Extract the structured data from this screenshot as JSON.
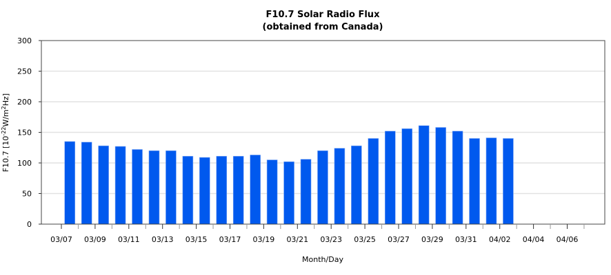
{
  "chart_data": {
    "type": "bar",
    "title": "F10.7 Solar Radio Flux",
    "subtitle": "(obtained from Canada)",
    "xlabel": "Month/Day",
    "ylabel_parts": [
      "F10.7 [10",
      "-22",
      "W/m",
      "2",
      "Hz]"
    ],
    "ylim": [
      0,
      300
    ],
    "yticks": [
      0,
      50,
      100,
      150,
      200,
      250,
      300
    ],
    "grid": true,
    "bar_color": "#0059ee",
    "x_range_days": 31,
    "xtick_labels": [
      "03/07",
      "03/09",
      "03/11",
      "03/13",
      "03/15",
      "03/17",
      "03/19",
      "03/21",
      "03/23",
      "03/25",
      "03/27",
      "03/29",
      "03/31",
      "04/02",
      "04/04",
      "04/06"
    ],
    "categories": [
      "03/07",
      "03/08",
      "03/09",
      "03/10",
      "03/11",
      "03/12",
      "03/13",
      "03/14",
      "03/15",
      "03/16",
      "03/17",
      "03/18",
      "03/19",
      "03/20",
      "03/21",
      "03/22",
      "03/23",
      "03/24",
      "03/25",
      "03/26",
      "03/27",
      "03/28",
      "03/29",
      "03/30",
      "03/31",
      "04/01",
      "04/02"
    ],
    "values": [
      135,
      134,
      128,
      127,
      122,
      120,
      120,
      111,
      109,
      111,
      111,
      113,
      105,
      102,
      106,
      120,
      124,
      128,
      140,
      152,
      156,
      161,
      158,
      152,
      140,
      141,
      140
    ]
  }
}
